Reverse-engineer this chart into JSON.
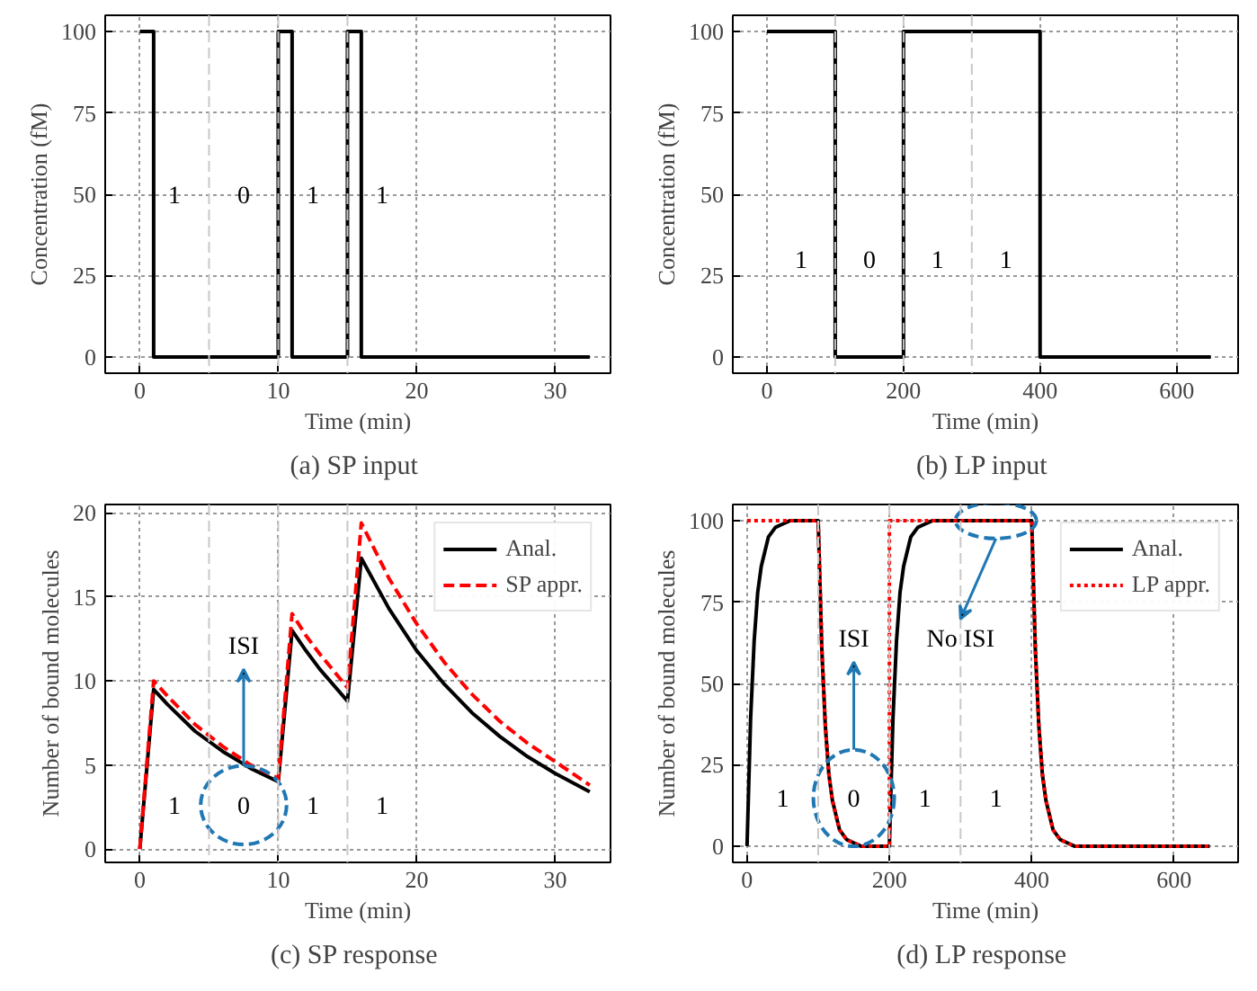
{
  "chart_data": [
    {
      "type": "line",
      "title": "(a)  SP input",
      "xlabel": "Time (min)",
      "ylabel": "Concentration (fM)",
      "xlim": [
        -2.5,
        34
      ],
      "ylim": [
        -5,
        105
      ],
      "xticks": [
        0,
        10,
        20,
        30
      ],
      "yticks": [
        0,
        25,
        50,
        75,
        100
      ],
      "grid": true,
      "line_style": "solid",
      "x": [
        0,
        1,
        1,
        10,
        10,
        11,
        11,
        15,
        15,
        16,
        16,
        32.5
      ],
      "series": [
        {
          "color": "#000000",
          "values": [
            100,
            100,
            0,
            0,
            100,
            100,
            0,
            0,
            100,
            100,
            0,
            0
          ]
        }
      ],
      "ref_lines": [
        {
          "axis": "x",
          "value": 5,
          "color": "#c8c8c8",
          "line_style": "dashed"
        },
        {
          "axis": "x",
          "value": 10,
          "color": "#c8c8c8",
          "line_style": "dashed"
        },
        {
          "axis": "x",
          "value": 15,
          "color": "#c8c8c8",
          "line_style": "dashed"
        }
      ],
      "annotations": [
        "1",
        "0",
        "1",
        "1"
      ]
    },
    {
      "type": "line",
      "title": "(b)  LP input",
      "xlabel": "Time (min)",
      "ylabel": "Concentration (fM)",
      "xlim": [
        -50,
        690
      ],
      "ylim": [
        -5,
        105
      ],
      "xticks": [
        0,
        200,
        400,
        600
      ],
      "yticks": [
        0,
        25,
        50,
        75,
        100
      ],
      "grid": true,
      "line_style": "solid",
      "x": [
        0,
        100,
        100,
        200,
        200,
        400,
        400,
        650
      ],
      "series": [
        {
          "color": "#000000",
          "values": [
            100,
            100,
            0,
            0,
            100,
            100,
            0,
            0
          ]
        }
      ],
      "ref_lines": [
        {
          "axis": "x",
          "value": 100,
          "color": "#c8c8c8",
          "line_style": "dashed"
        },
        {
          "axis": "x",
          "value": 200,
          "color": "#c8c8c8",
          "line_style": "dashed"
        },
        {
          "axis": "x",
          "value": 300,
          "color": "#c8c8c8",
          "line_style": "dashed"
        }
      ],
      "annotations": [
        "1",
        "0",
        "1",
        "1"
      ]
    },
    {
      "type": "line",
      "title": "(c)  SP response",
      "xlabel": "Time (min)",
      "ylabel": "Number of bound molecules",
      "xlim": [
        -2.5,
        34
      ],
      "ylim": [
        -0.8,
        20.5
      ],
      "xticks": [
        0,
        10,
        20,
        30
      ],
      "yticks": [
        0,
        5,
        10,
        15,
        20
      ],
      "grid": true,
      "legend": "top right",
      "x": [
        0,
        1,
        2,
        4,
        6,
        8,
        10,
        11,
        12,
        13,
        15,
        16,
        18,
        20,
        22,
        24,
        26,
        28,
        30,
        32.5
      ],
      "series": [
        {
          "name": "Anal.",
          "color": "#000000",
          "line_style": "solid",
          "values": [
            0,
            9.5,
            8.6,
            7.0,
            5.8,
            4.8,
            4.0,
            13.0,
            11.8,
            10.7,
            8.8,
            17.3,
            14.3,
            11.8,
            9.8,
            8.1,
            6.7,
            5.5,
            4.5,
            3.4
          ]
        },
        {
          "name": "SP appr.",
          "color": "#ff0000",
          "line_style": "dashed",
          "values": [
            0,
            10.0,
            9.1,
            7.4,
            6.1,
            5.0,
            4.2,
            14.0,
            12.7,
            11.6,
            9.6,
            19.4,
            16.1,
            13.4,
            11.1,
            9.2,
            7.6,
            6.3,
            5.2,
            3.8
          ]
        }
      ],
      "ref_lines": [
        {
          "axis": "x",
          "value": 5,
          "color": "#c8c8c8",
          "line_style": "dashed"
        },
        {
          "axis": "x",
          "value": 10,
          "color": "#c8c8c8",
          "line_style": "dashed"
        },
        {
          "axis": "x",
          "value": 15,
          "color": "#c8c8c8",
          "line_style": "dashed"
        }
      ],
      "annotations": [
        "1",
        "0",
        "1",
        "1",
        "ISI"
      ]
    },
    {
      "type": "line",
      "title": "(d)  LP response",
      "xlabel": "Time (min)",
      "ylabel": "Number of bound molecules",
      "xlim": [
        -20,
        690
      ],
      "ylim": [
        -5,
        105
      ],
      "xticks": [
        0,
        200,
        400,
        600
      ],
      "yticks": [
        0,
        25,
        50,
        75,
        100
      ],
      "grid": true,
      "legend": "top right",
      "series": [
        {
          "name": "Anal.",
          "color": "#000000",
          "line_style": "solid",
          "x": [
            0,
            5,
            10,
            15,
            20,
            30,
            40,
            50,
            60,
            100,
            105,
            110,
            115,
            120,
            130,
            140,
            150,
            160,
            180,
            200,
            205,
            210,
            215,
            220,
            230,
            240,
            250,
            260,
            300,
            400,
            405,
            410,
            415,
            420,
            430,
            440,
            450,
            460,
            480,
            650
          ],
          "values": [
            0,
            39,
            63,
            78,
            86,
            95,
            98,
            99,
            100,
            100,
            61,
            37,
            22,
            14,
            5,
            2,
            1,
            0,
            0,
            0,
            39,
            63,
            78,
            86,
            95,
            98,
            99,
            100,
            100,
            100,
            61,
            37,
            22,
            14,
            5,
            2,
            1,
            0,
            0,
            0
          ]
        },
        {
          "name": "LP appr.",
          "color": "#ff0000",
          "line_style": "dotted",
          "x": [
            0,
            100,
            105,
            110,
            115,
            120,
            130,
            140,
            150,
            160,
            180,
            200,
            200,
            400,
            405,
            410,
            415,
            420,
            430,
            440,
            450,
            460,
            480,
            650
          ],
          "values": [
            100,
            100,
            61,
            37,
            22,
            14,
            5,
            2,
            1,
            0,
            0,
            0,
            100,
            100,
            61,
            37,
            22,
            14,
            5,
            2,
            1,
            0,
            0,
            0
          ]
        }
      ],
      "ref_lines": [
        {
          "axis": "x",
          "value": 100,
          "color": "#c8c8c8",
          "line_style": "dashed"
        },
        {
          "axis": "x",
          "value": 200,
          "color": "#c8c8c8",
          "line_style": "dashed"
        },
        {
          "axis": "x",
          "value": 300,
          "color": "#c8c8c8",
          "line_style": "dashed"
        }
      ],
      "annotations": [
        "1",
        "0",
        "1",
        "1",
        "ISI",
        "No ISI"
      ]
    }
  ]
}
